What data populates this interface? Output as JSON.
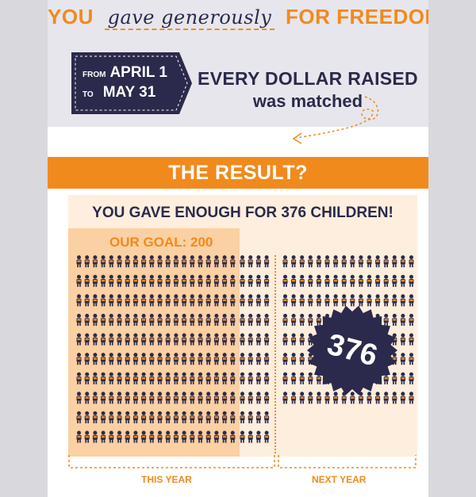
{
  "header": {
    "lead": "YOU",
    "script": "gave generously",
    "tail": "FOR FREEDOM"
  },
  "dates": {
    "from_label": "FROM",
    "from_value": "APRIL 1",
    "to_label": "TO",
    "to_value": "MAY 31"
  },
  "match": {
    "line1": "EVERY DOLLAR RAISED",
    "line2": "was matched"
  },
  "result": {
    "title": "THE RESULT?"
  },
  "panel": {
    "headline": "YOU GAVE ENOUGH FOR 376 CHILDREN!",
    "goal": "OUR GOAL: 200",
    "badge": "376"
  },
  "footer": {
    "this_year": "THIS YEAR",
    "next_year": "NEXT YEAR"
  },
  "colors": {
    "orange": "#f18a1c",
    "navy": "#2b2a4c",
    "peach": "#fdeedd",
    "goal_fill": "#fbd0a3"
  },
  "icons": {
    "child": "child-figure-icon"
  }
}
